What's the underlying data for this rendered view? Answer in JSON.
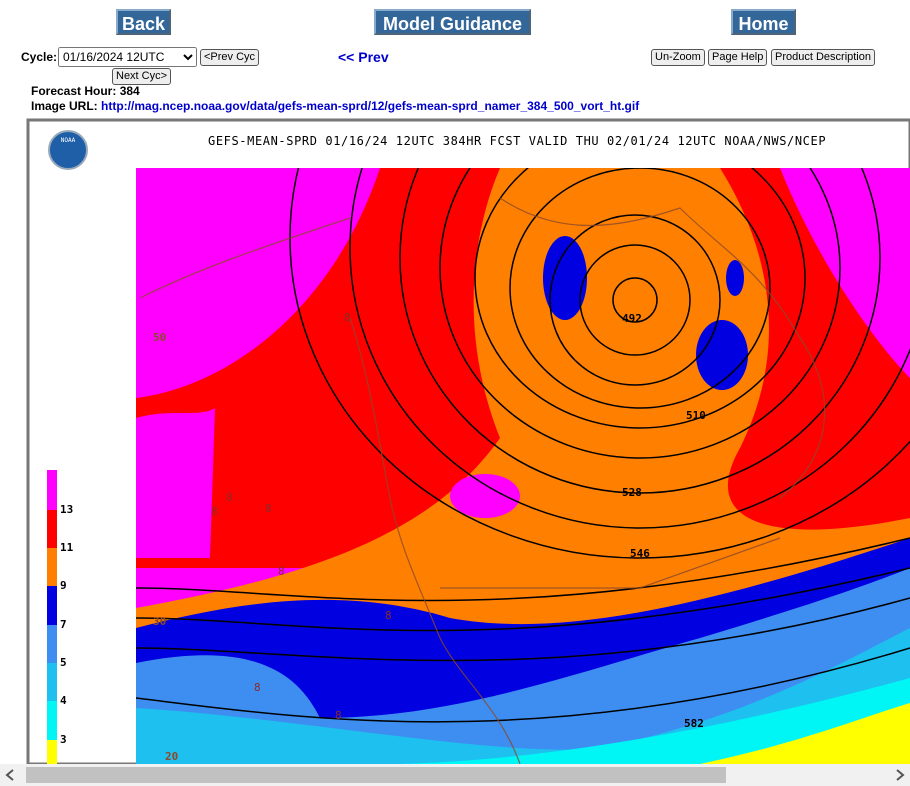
{
  "nav": {
    "back": "Back",
    "model_guidance": "Model Guidance",
    "home": "Home"
  },
  "controls": {
    "cycle_label": "Cycle:",
    "cycle_value": "01/16/2024 12UTC",
    "prev_cyc": "<Prev Cyc",
    "next_cyc": "Next Cyc>",
    "prev": "<< Prev",
    "unzoom": "Un-Zoom",
    "page_help": "Page Help",
    "product_description": "Product Description"
  },
  "info": {
    "forecast_hour_label": "Forecast Hour:",
    "forecast_hour": "384",
    "image_url_label": "Image URL:",
    "image_url": "http://mag.ncep.noaa.gov/data/gefs-mean-sprd/12/gefs-mean-sprd_namer_384_500_vort_ht.gif"
  },
  "map": {
    "title": "GEFS-MEAN-SPRD 01/16/24 12UTC 384HR FCST VALID THU 02/01/24 12UTC NOAA/NWS/NCEP",
    "logo": "NOAA",
    "legend_labels": [
      "13",
      "11",
      "9",
      "7",
      "5",
      "4",
      "3"
    ],
    "contour_labels": [
      "492",
      "510",
      "528",
      "546",
      "582",
      "50",
      "30",
      "20"
    ],
    "spread_labels": [
      "8",
      "8",
      "8",
      "8",
      "8",
      "8",
      "8",
      "8"
    ]
  }
}
